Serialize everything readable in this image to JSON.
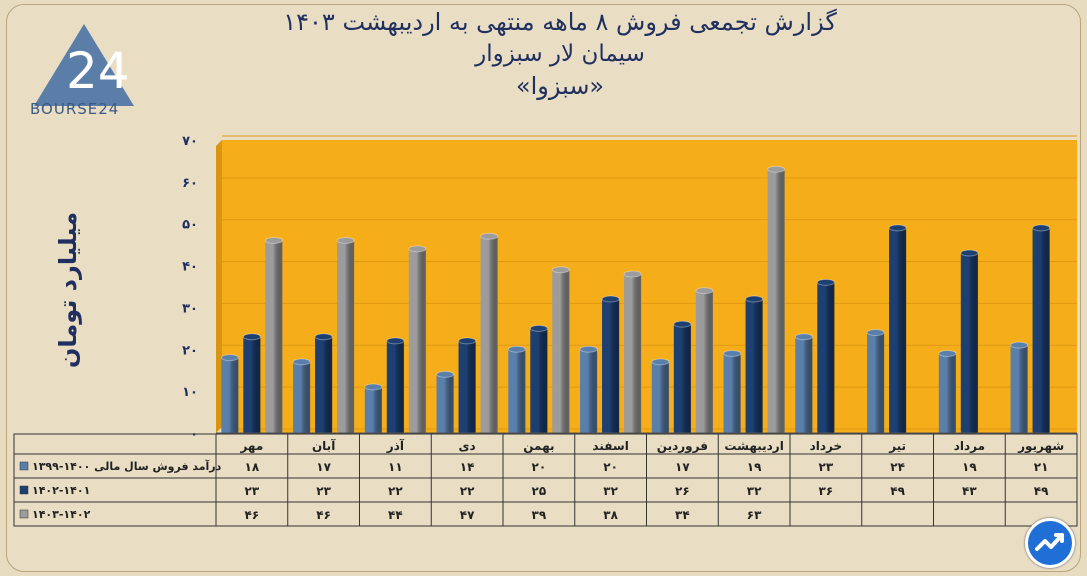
{
  "title": {
    "line1": "گزارش تجمعی فروش ۸ ماهه منتهی به اردیبهشت ۱۴۰۳",
    "line2": "سیمان لار سبزوار",
    "line3": "«سبزوا»"
  },
  "logo": {
    "text": "BOURSE24",
    "numeral": "24"
  },
  "chart_data": {
    "type": "bar",
    "ylabel": "میلیارد تومان",
    "ylim": [
      0,
      70
    ],
    "yticks": [
      "۰",
      "۱۰",
      "۲۰",
      "۳۰",
      "۴۰",
      "۵۰",
      "۶۰",
      "۷۰"
    ],
    "categories": [
      "مهر",
      "آبان",
      "آذر",
      "دی",
      "بهمن",
      "اسفند",
      "فروردین",
      "اردیبهشت",
      "خرداد",
      "تیر",
      "مرداد",
      "شهریور"
    ],
    "series": [
      {
        "name": "درآمد فروش سال مالی ۱۴۰۰-۱۳۹۹",
        "color": "#5a7fab",
        "values": [
          18,
          17,
          11,
          14,
          20,
          20,
          17,
          19,
          23,
          24,
          19,
          21
        ],
        "labels": [
          "۱۸",
          "۱۷",
          "۱۱",
          "۱۴",
          "۲۰",
          "۲۰",
          "۱۷",
          "۱۹",
          "۲۳",
          "۲۴",
          "۱۹",
          "۲۱"
        ]
      },
      {
        "name": "۱۴۰۲-۱۴۰۱",
        "color": "#1d3f72",
        "values": [
          23,
          23,
          22,
          22,
          25,
          32,
          26,
          32,
          36,
          49,
          43,
          49
        ],
        "labels": [
          "۲۳",
          "۲۳",
          "۲۲",
          "۲۲",
          "۲۵",
          "۳۲",
          "۲۶",
          "۳۲",
          "۳۶",
          "۴۹",
          "۴۳",
          "۴۹"
        ]
      },
      {
        "name": "۱۴۰۳-۱۴۰۲",
        "color": "#9c9c9c",
        "values": [
          46,
          46,
          44,
          47,
          39,
          38,
          34,
          63,
          null,
          null,
          null,
          null
        ],
        "labels": [
          "۴۶",
          "۴۶",
          "۴۴",
          "۴۷",
          "۳۹",
          "۳۸",
          "۳۴",
          "۶۳",
          "",
          "",
          "",
          ""
        ]
      }
    ],
    "colors": {
      "plot_background": "#f5ae1a",
      "axis_text": "#1f2f5f"
    }
  }
}
